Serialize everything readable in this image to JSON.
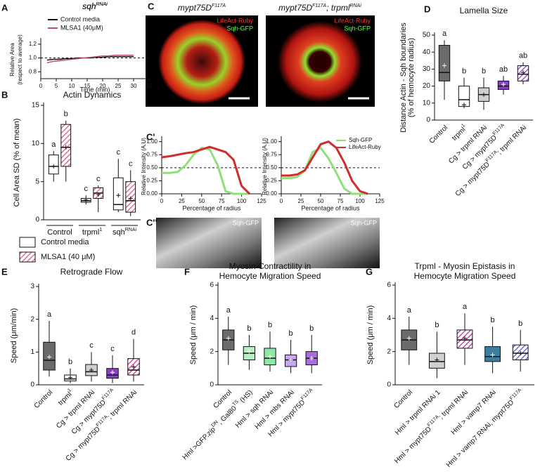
{
  "images": {
    "panel": "C",
    "kymo_panel": "C''",
    "titles": [
      [
        "mypt75D",
        "F117A"
      ],
      [
        "mypt75D",
        "F117A",
        "; trpml",
        "RNAi"
      ]
    ],
    "channel_labels": [
      "LifeAct-Ruby",
      "Sqh-GFP"
    ],
    "kymo_label": "Sqh-GFP"
  },
  "chart_data": [
    {
      "type": "line",
      "panel": "A",
      "title": [
        "sqh",
        "RNAi"
      ],
      "ylabel": [
        "Relative Area",
        "(respect to average)"
      ],
      "xlabel": "Time (min)",
      "x": [
        2,
        4,
        6,
        8,
        10,
        12,
        14,
        16,
        18,
        20,
        22,
        24,
        26,
        28,
        30
      ],
      "series": [
        {
          "name": "Control media",
          "color": "#111111",
          "values": [
            0.97,
            0.98,
            0.98,
            0.99,
            0.99,
            1.0,
            1.0,
            1.0,
            1.01,
            1.01,
            1.02,
            1.02,
            1.02,
            1.02,
            1.02
          ]
        },
        {
          "name": "MLSA1 (40μM)",
          "color": "#c0507a",
          "values": [
            0.93,
            0.95,
            0.96,
            0.97,
            0.98,
            0.99,
            1.0,
            1.01,
            1.02,
            1.03,
            1.03,
            1.04,
            1.04,
            1.04,
            1.04
          ]
        }
      ],
      "xlim": [
        0,
        35
      ],
      "xticks": [
        0,
        5,
        10,
        15,
        20,
        25,
        30,
        35
      ],
      "ylim": [
        0.7,
        1.25
      ],
      "yticks": [
        0.8,
        {
          "value": 1,
          "label": "1.0"
        },
        1.2
      ],
      "hline": 1,
      "legend": "top-left"
    },
    {
      "type": "box",
      "panel": "B",
      "title": [
        "Actin Dynamics"
      ],
      "ylabel": [
        "Cell Area SD (% of mean)"
      ],
      "groups": [
        [
          "Control"
        ],
        [
          "trpml",
          "1"
        ],
        [
          "sqh",
          "RNAi"
        ]
      ],
      "series": [
        {
          "name": "Control media",
          "color": "#ffffff",
          "hatched": false,
          "min": [
            5,
            2,
            1
          ],
          "q1": [
            6,
            2.3,
            1.3
          ],
          "median": [
            7,
            2.5,
            2
          ],
          "q3": [
            8.5,
            2.8,
            5.5
          ],
          "max": [
            9,
            3.2,
            8
          ],
          "mean": [
            7,
            2.6,
            3.2
          ],
          "letters": [
            "a",
            "c",
            "c"
          ]
        },
        {
          "name": "MLSA1 (40 μM)",
          "color": "#e070a0",
          "hatched": true,
          "min": [
            5,
            1,
            0.5
          ],
          "q1": [
            7,
            2.8,
            1
          ],
          "median": [
            9.5,
            3.5,
            2.5
          ],
          "q3": [
            12.5,
            4.2,
            5
          ],
          "max": [
            13,
            4.5,
            6.5
          ],
          "mean": [
            9.5,
            3.3,
            2.8
          ],
          "letters": [
            "b",
            "c",
            "c"
          ]
        }
      ],
      "ylim": [
        0,
        15
      ],
      "yticks": [
        0,
        5,
        10,
        15
      ],
      "legend": "below"
    },
    {
      "type": "line",
      "panel": "C'",
      "ylabel": [
        "Relative Intensity (A.U)"
      ],
      "xlabel": "Percentage of radius",
      "x": [
        0,
        10,
        20,
        30,
        40,
        50,
        60,
        70,
        80,
        90,
        100,
        110
      ],
      "series": [
        {
          "name": "Sqh-GFP",
          "color": "#8fe07a",
          "values": [
            0.4,
            0.4,
            0.42,
            0.55,
            0.75,
            0.88,
            0.85,
            0.55,
            0.05,
            0,
            0,
            0
          ]
        },
        {
          "name": "LifeAct-Ruby",
          "color": "#d42a2a",
          "values": [
            0.7,
            0.72,
            0.75,
            0.78,
            0.8,
            0.85,
            0.9,
            0.85,
            0.8,
            0.65,
            0.15,
            0
          ]
        }
      ],
      "xlim": [
        0,
        125
      ],
      "xticks": [
        0,
        25,
        50,
        75,
        100,
        125
      ],
      "ylim": [
        0,
        1.05
      ],
      "yticks": [
        {
          "value": 0,
          "label": "0.00"
        },
        {
          "value": 0.25,
          "label": "0.25"
        },
        {
          "value": 0.5,
          "label": "0.50"
        },
        {
          "value": 0.75,
          "label": "0.75"
        },
        {
          "value": 1,
          "label": "1.00"
        }
      ],
      "hline": 0.5
    },
    {
      "type": "line",
      "ylabel": [
        "Relative Intensity (A.U)"
      ],
      "xlabel": "Percentage of radius",
      "x": [
        0,
        10,
        20,
        30,
        40,
        50,
        60,
        70,
        80,
        90,
        100,
        110
      ],
      "series": [
        {
          "name": "Sqh-GFP",
          "color": "#8fe07a",
          "values": [
            0.3,
            0.3,
            0.32,
            0.45,
            0.8,
            0.88,
            0.68,
            0.4,
            0.1,
            0,
            0,
            0
          ]
        },
        {
          "name": "LifeAct-Ruby",
          "color": "#d42a2a",
          "values": [
            0.35,
            0.35,
            0.37,
            0.45,
            0.7,
            0.95,
            1.0,
            0.88,
            0.6,
            0.25,
            0.05,
            0
          ]
        }
      ],
      "xlim": [
        0,
        125
      ],
      "xticks": [
        0,
        25,
        50,
        75,
        100,
        125
      ],
      "ylim": [
        0,
        1.05
      ],
      "yticks": [
        {
          "value": 0,
          "label": "0.00"
        },
        {
          "value": 0.25,
          "label": "0.25"
        },
        {
          "value": 0.5,
          "label": "0.50"
        },
        {
          "value": 0.75,
          "label": "0.75"
        },
        {
          "value": 1,
          "label": "1.00"
        }
      ],
      "hline": 0.5,
      "legend": "top-right"
    },
    {
      "type": "box",
      "panel": "D",
      "title": [
        "Lamella Size"
      ],
      "ylabel": [
        "Distance Actin - Sqh boundaries",
        "(% of hemocyte radius)"
      ],
      "categories": [
        [
          "Control"
        ],
        [
          "trpml",
          "1"
        ],
        [
          "Cg > trpml RNAi"
        ],
        [
          "Cg > mypt75D",
          "F117A"
        ],
        [
          "Cg > mypt75D",
          "F117A",
          "; trpml RNAi"
        ]
      ],
      "series": [
        {
          "colors": [
            "#6b6b6b",
            "#ffffff",
            "#d0d0d0",
            "#8a3fc8",
            "#9b59d0"
          ],
          "hatched": [
            false,
            false,
            false,
            false,
            true
          ],
          "min": [
            12,
            7,
            6,
            15,
            21
          ],
          "q1": [
            23,
            8,
            11,
            18,
            23
          ],
          "median": [
            28,
            12,
            15,
            20,
            27
          ],
          "q3": [
            44,
            20,
            19,
            23,
            32
          ],
          "max": [
            47,
            25,
            25,
            26,
            34
          ],
          "mean": [
            32,
            9,
            15,
            21,
            28
          ],
          "letters": [
            "a",
            "b",
            "b",
            "ab",
            "ab"
          ]
        }
      ],
      "ylim": [
        0,
        50
      ],
      "yticks": [
        0,
        10,
        20,
        30,
        40,
        50
      ]
    },
    {
      "type": "box",
      "panel": "E",
      "title": [
        "Retrograde Flow"
      ],
      "ylabel": [
        "Speed (μm/min)"
      ],
      "categories": [
        [
          "Control"
        ],
        [
          "trpml",
          "1"
        ],
        [
          "Cg > trpml RNAi"
        ],
        [
          "Cg > mypt75D",
          "F117A"
        ],
        [
          "Cg > mypt75D",
          "F117A",
          "; trpml RNAi"
        ]
      ],
      "series": [
        {
          "colors": [
            "#6b6b6b",
            "#ffffff",
            "#d0d0d0",
            "#8a3fc8",
            "#d94f9a"
          ],
          "hatched": [
            false,
            false,
            false,
            false,
            true
          ],
          "min": [
            0.25,
            0.05,
            0.1,
            0.05,
            0.1
          ],
          "q1": [
            0.45,
            0.12,
            0.28,
            0.2,
            0.3
          ],
          "median": [
            0.75,
            0.18,
            0.4,
            0.3,
            0.45
          ],
          "q3": [
            1.3,
            0.3,
            0.62,
            0.5,
            0.8
          ],
          "max": [
            1.95,
            0.5,
            1.0,
            0.9,
            1.4
          ],
          "mean": [
            0.85,
            0.22,
            0.45,
            0.38,
            0.55
          ],
          "letters": [
            "a",
            "b",
            "c",
            "c",
            "d"
          ]
        }
      ],
      "ylim": [
        0,
        3
      ],
      "yticks": [
        0,
        1,
        2,
        3
      ]
    },
    {
      "type": "box",
      "panel": "F",
      "title": [
        "Myosin Contractility in",
        "Hemocyte Migration Speed"
      ],
      "ylabel": [
        "Speed (μm / min)"
      ],
      "categories": [
        [
          "Control"
        ],
        [
          "Hml >GFP.zip",
          "DN",
          ", Gal80",
          "TS",
          " (HS)"
        ],
        [
          "Hml > sqh RNAi"
        ],
        [
          "Hml > mbs RNAi"
        ],
        [
          "Hml > mypt75D",
          "F117A"
        ]
      ],
      "series": [
        {
          "colors": [
            "#6b6b6b",
            "#b4f0c0",
            "#8fe8a8",
            "#c8a8f0",
            "#a86ee0"
          ],
          "hatched": [
            false,
            false,
            false,
            false,
            false
          ],
          "min": [
            1.2,
            0.9,
            0.8,
            0.7,
            0.7
          ],
          "q1": [
            2.1,
            1.5,
            1.2,
            1.1,
            1.2
          ],
          "median": [
            2.7,
            1.9,
            1.6,
            1.5,
            1.6
          ],
          "q3": [
            3.3,
            2.3,
            2.2,
            1.8,
            2.0
          ],
          "max": [
            4.1,
            3.0,
            3.2,
            2.7,
            3.0
          ],
          "mean": [
            2.8,
            2.0,
            1.7,
            1.5,
            1.6
          ],
          "letters": [
            "a",
            "b",
            "b",
            "b",
            "b"
          ]
        }
      ],
      "ylim": [
        0,
        6
      ],
      "yticks": [
        0,
        2,
        4,
        6
      ]
    },
    {
      "type": "box",
      "panel": "G",
      "title": [
        "Trpml - Myosin Epistasis in",
        "Hemocyte Migration Speed"
      ],
      "ylabel": [
        "Speed (μm / min)"
      ],
      "categories": [
        [
          "Control"
        ],
        [
          "Hml > trpml RNAi 1"
        ],
        [
          "Hml > mypt75D",
          "F117A",
          "; trpml RNAi"
        ],
        [
          "Hml > vamp7 RNAi"
        ],
        [
          "Hml > vamp7 RNAi, mypt75D",
          "F117A"
        ]
      ],
      "series": [
        {
          "colors": [
            "#6b6b6b",
            "#d0d0d0",
            "#c04fa0",
            "#3a7f9f",
            "#6a70c0"
          ],
          "hatched": [
            false,
            false,
            true,
            false,
            true
          ],
          "min": [
            1.2,
            0.4,
            1.2,
            0.7,
            0.8
          ],
          "q1": [
            2.1,
            1.0,
            2.2,
            1.4,
            1.5
          ],
          "median": [
            2.7,
            1.4,
            2.7,
            1.7,
            1.9
          ],
          "q3": [
            3.3,
            1.9,
            3.3,
            2.3,
            2.4
          ],
          "max": [
            4.1,
            3.2,
            4.3,
            3.5,
            3.3
          ],
          "mean": [
            2.8,
            1.5,
            2.8,
            1.8,
            1.9
          ],
          "letters": [
            "a",
            "b",
            "a",
            "b",
            "b"
          ]
        }
      ],
      "ylim": [
        0,
        6
      ],
      "yticks": [
        0,
        2,
        4,
        6
      ]
    }
  ]
}
